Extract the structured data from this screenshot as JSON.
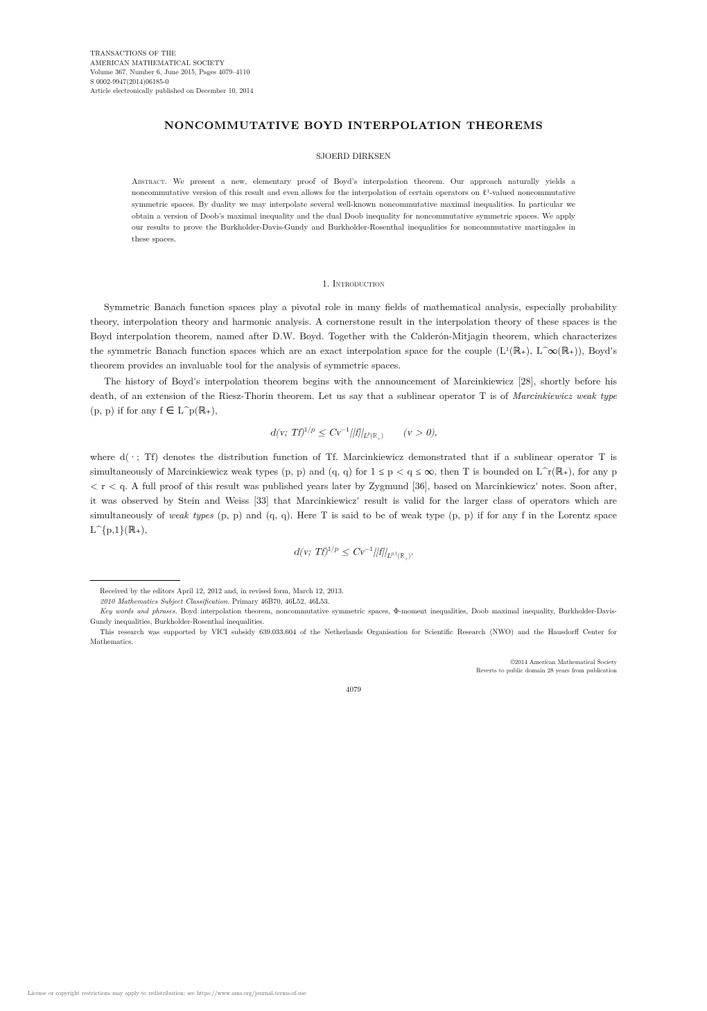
{
  "journal": {
    "line1": "TRANSACTIONS OF THE",
    "line2": "AMERICAN MATHEMATICAL SOCIETY",
    "line3": "Volume 367, Number 6, June 2015, Pages 4079–4110",
    "line4": "S 0002-9947(2014)06185-0",
    "line5": "Article electronically published on December 10, 2014"
  },
  "title": "NONCOMMUTATIVE BOYD INTERPOLATION THEOREMS",
  "author": "SJOERD DIRKSEN",
  "abstract": {
    "label": "Abstract.",
    "text": "We present a new, elementary proof of Boyd's interpolation theorem. Our approach naturally yields a noncommutative version of this result and even allows for the interpolation of certain operators on ℓ¹-valued noncommutative symmetric spaces. By duality we may interpolate several well-known noncommutative maximal inequalities. In particular we obtain a version of Doob's maximal inequality and the dual Doob inequality for noncommutative symmetric spaces. We apply our results to prove the Burkholder-Davis-Gundy and Burkholder-Rosenthal inequalities for noncommutative martingales in these spaces."
  },
  "section": {
    "number": "1.",
    "title": "Introduction"
  },
  "body": {
    "p1": "Symmetric Banach function spaces play a pivotal role in many fields of mathematical analysis, especially probability theory, interpolation theory and harmonic analysis. A cornerstone result in the interpolation theory of these spaces is the Boyd interpolation theorem, named after D.W. Boyd. Together with the Calderón-Mitjagin theorem, which characterizes the symmetric Banach function spaces which are an exact interpolation space for the couple (L¹(ℝ₊), L^∞(ℝ₊)), Boyd's theorem provides an invaluable tool for the analysis of symmetric spaces.",
    "p2a": "The history of Boyd's interpolation theorem begins with the announcement of Marcinkiewicz [28], shortly before his death, of an extension of the Riesz-Thorin theorem. Let us say that a sublinear operator T is of ",
    "p2_italic1": "Marcinkiewicz weak type",
    "p2b": " (p, p) if for any f ∈ L^p(ℝ₊),",
    "eq1": "d(v; Tf)^(1/p) ≤ Cv⁻¹ ||f||_{L^p(ℝ₊)}        (v > 0),",
    "p3": "where d(·; Tf) denotes the distribution function of Tf. Marcinkiewicz demonstrated that if a sublinear operator T is simultaneously of Marcinkiewicz weak types (p, p) and (q, q) for 1 ≤ p < q ≤ ∞, then T is bounded on L^r(ℝ₊), for any p < r < q. A full proof of this result was published years later by Zygmund [36], based on Marcinkiewicz' notes. Soon after, it was observed by Stein and Weiss [33] that Marcinkiewicz' result is valid for the larger class of operators which are simultaneously of ",
    "p3_italic1": "weak types",
    "p3b": " (p, p) and (q, q). Here T is said to be of weak type (p, p) if for any f in the Lorentz space L^{p,1}(ℝ₊),",
    "eq2": "d(v; Tf)^(1/p) ≤ Cv⁻¹ ||f||_{L^{p,1}(ℝ₊)}."
  },
  "footnotes": {
    "received": "Received by the editors April 12, 2012 and, in revised form, March 12, 2013.",
    "msc_label": "2010 Mathematics Subject Classification.",
    "msc": " Primary 46B70, 46L52, 46L53.",
    "keywords_label": "Key words and phrases.",
    "keywords": " Boyd interpolation theorem, noncommutative symmetric spaces, Φ-moment inequalities, Doob maximal inequality, Burkholder-Davis-Gundy inequalities, Burkholder-Rosenthal inequalities.",
    "funding": "This research was supported by VICI subsidy 639.033.604 of the Netherlands Organisation for Scientific Research (NWO) and the Hausdorff Center for Mathematics."
  },
  "copyright": {
    "line1": "©2014 American Mathematical Society",
    "line2": "Reverts to public domain 28 years from publication"
  },
  "page_number": "4079",
  "license": "License or copyright restrictions may apply to redistribution; see https://www.ams.org/journal-terms-of-use"
}
